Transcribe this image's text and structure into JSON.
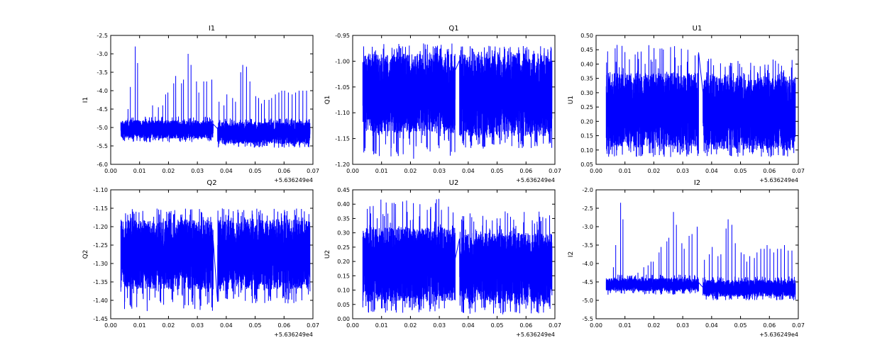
{
  "chart_data": [
    {
      "type": "line",
      "title": "I1",
      "ylabel": "I1",
      "xlabel": "",
      "x_offset_label": "+5.636249e4",
      "xlim": [
        0.0,
        0.07
      ],
      "xticks": [
        "0.00",
        "0.01",
        "0.02",
        "0.03",
        "0.04",
        "0.05",
        "0.06",
        "0.07"
      ],
      "ylim": [
        -6.0,
        -2.5
      ],
      "yticks": [
        "-6.0",
        "-5.5",
        "-5.0",
        "-4.5",
        "-4.0",
        "-3.5",
        "-3.0",
        "-2.5"
      ],
      "series_color": "#0000ff",
      "segments": [
        {
          "x": [
            0.0035,
            0.0355
          ],
          "band": [
            -5.3,
            -4.8
          ],
          "extremes": [
            -5.4,
            -4.7
          ]
        },
        {
          "x": [
            0.037,
            0.069
          ],
          "band": [
            -5.45,
            -4.85
          ],
          "extremes": [
            -5.55,
            -4.75
          ]
        }
      ],
      "spikes": [
        [
          0.006,
          -4.5
        ],
        [
          0.0068,
          -3.9
        ],
        [
          0.0085,
          -2.8
        ],
        [
          0.0093,
          -3.25
        ],
        [
          0.0145,
          -4.4
        ],
        [
          0.0165,
          -4.45
        ],
        [
          0.018,
          -4.4
        ],
        [
          0.019,
          -4.1
        ],
        [
          0.0198,
          -4.05
        ],
        [
          0.0218,
          -3.8
        ],
        [
          0.0225,
          -3.6
        ],
        [
          0.0245,
          -3.8
        ],
        [
          0.0252,
          -3.7
        ],
        [
          0.0268,
          -3.0
        ],
        [
          0.0278,
          -3.3
        ],
        [
          0.0297,
          -3.75
        ],
        [
          0.0305,
          -4.05
        ],
        [
          0.0322,
          -3.75
        ],
        [
          0.0332,
          -3.75
        ],
        [
          0.035,
          -3.7
        ],
        [
          0.0375,
          -4.3
        ],
        [
          0.0392,
          -4.4
        ],
        [
          0.0402,
          -4.1
        ],
        [
          0.0422,
          -4.2
        ],
        [
          0.0432,
          -4.3
        ],
        [
          0.045,
          -3.5
        ],
        [
          0.0457,
          -3.3
        ],
        [
          0.047,
          -3.35
        ],
        [
          0.0482,
          -3.75
        ],
        [
          0.0502,
          -4.15
        ],
        [
          0.0512,
          -4.2
        ],
        [
          0.0522,
          -4.35
        ],
        [
          0.0532,
          -4.25
        ],
        [
          0.0548,
          -4.25
        ],
        [
          0.0557,
          -4.2
        ],
        [
          0.057,
          -4.1
        ],
        [
          0.0582,
          -4.05
        ],
        [
          0.0592,
          -4.0
        ],
        [
          0.0602,
          -4.0
        ],
        [
          0.0615,
          -4.05
        ],
        [
          0.0628,
          -4.1
        ],
        [
          0.064,
          -4.05
        ],
        [
          0.0652,
          -4.0
        ],
        [
          0.0665,
          -4.0
        ],
        [
          0.0678,
          -4.0
        ]
      ]
    },
    {
      "type": "line",
      "title": "Q1",
      "ylabel": "Q1",
      "xlabel": "",
      "x_offset_label": "+5.636249e4",
      "xlim": [
        0.0,
        0.07
      ],
      "xticks": [
        "0.00",
        "0.01",
        "0.02",
        "0.03",
        "0.04",
        "0.05",
        "0.06",
        "0.07"
      ],
      "ylim": [
        -1.2,
        -0.95
      ],
      "yticks": [
        "-1.20",
        "-1.15",
        "-1.10",
        "-1.05",
        "-1.00",
        "-0.95"
      ],
      "series_color": "#0000ff",
      "segments": [
        {
          "x": [
            0.0035,
            0.0355
          ],
          "band": [
            -1.14,
            -0.985
          ],
          "extremes": [
            -1.19,
            -0.965
          ]
        },
        {
          "x": [
            0.037,
            0.069
          ],
          "band": [
            -1.145,
            -0.985
          ],
          "extremes": [
            -1.17,
            -0.97
          ]
        }
      ],
      "spikes": []
    },
    {
      "type": "line",
      "title": "U1",
      "ylabel": "U1",
      "xlabel": "",
      "x_offset_label": "+5.636249e4",
      "xlim": [
        0.0,
        0.07
      ],
      "xticks": [
        "0.00",
        "0.01",
        "0.02",
        "0.03",
        "0.04",
        "0.05",
        "0.06",
        "0.07"
      ],
      "ylim": [
        0.05,
        0.5
      ],
      "yticks": [
        "0.05",
        "0.10",
        "0.15",
        "0.20",
        "0.25",
        "0.30",
        "0.35",
        "0.40",
        "0.45",
        "0.50"
      ],
      "series_color": "#0000ff",
      "segments": [
        {
          "x": [
            0.0035,
            0.0355
          ],
          "band": [
            0.11,
            0.37
          ],
          "extremes": [
            0.075,
            0.47
          ]
        },
        {
          "x": [
            0.037,
            0.069
          ],
          "band": [
            0.1,
            0.36
          ],
          "extremes": [
            0.075,
            0.42
          ]
        }
      ],
      "spikes": []
    },
    {
      "type": "line",
      "title": "Q2",
      "ylabel": "Q2",
      "xlabel": "",
      "x_offset_label": "+5.636249e4",
      "xlim": [
        0.0,
        0.07
      ],
      "xticks": [
        "0.00",
        "0.01",
        "0.02",
        "0.03",
        "0.04",
        "0.05",
        "0.06",
        "0.07"
      ],
      "ylim": [
        -1.45,
        -1.1
      ],
      "yticks": [
        "-1.45",
        "-1.40",
        "-1.35",
        "-1.30",
        "-1.25",
        "-1.20",
        "-1.15",
        "-1.10"
      ],
      "series_color": "#0000ff",
      "segments": [
        {
          "x": [
            0.0035,
            0.0355
          ],
          "band": [
            -1.37,
            -1.18
          ],
          "extremes": [
            -1.43,
            -1.15
          ]
        },
        {
          "x": [
            0.037,
            0.069
          ],
          "band": [
            -1.37,
            -1.18
          ],
          "extremes": [
            -1.41,
            -1.15
          ]
        }
      ],
      "spikes": []
    },
    {
      "type": "line",
      "title": "U2",
      "ylabel": "U2",
      "xlabel": "",
      "x_offset_label": "+5.636249e4",
      "xlim": [
        0.0,
        0.07
      ],
      "xticks": [
        "0.00",
        "0.01",
        "0.02",
        "0.03",
        "0.04",
        "0.05",
        "0.06",
        "0.07"
      ],
      "ylim": [
        0.0,
        0.45
      ],
      "yticks": [
        "0.00",
        "0.05",
        "0.10",
        "0.15",
        "0.20",
        "0.25",
        "0.30",
        "0.35",
        "0.40",
        "0.45"
      ],
      "series_color": "#0000ff",
      "segments": [
        {
          "x": [
            0.0035,
            0.0355
          ],
          "band": [
            0.06,
            0.32
          ],
          "extremes": [
            0.02,
            0.42
          ]
        },
        {
          "x": [
            0.037,
            0.069
          ],
          "band": [
            0.05,
            0.3
          ],
          "extremes": [
            0.015,
            0.38
          ]
        }
      ],
      "spikes": []
    },
    {
      "type": "line",
      "title": "I2",
      "ylabel": "I2",
      "xlabel": "",
      "x_offset_label": "+5.636249e4",
      "xlim": [
        0.0,
        0.07
      ],
      "xticks": [
        "0.00",
        "0.01",
        "0.02",
        "0.03",
        "0.04",
        "0.05",
        "0.06",
        "0.07"
      ],
      "ylim": [
        -5.5,
        -2.0
      ],
      "yticks": [
        "-5.5",
        "-5.0",
        "-4.5",
        "-4.0",
        "-3.5",
        "-3.0",
        "-2.5",
        "-2.0"
      ],
      "series_color": "#0000ff",
      "segments": [
        {
          "x": [
            0.0035,
            0.0355
          ],
          "band": [
            -4.75,
            -4.4
          ],
          "extremes": [
            -4.85,
            -4.3
          ]
        },
        {
          "x": [
            0.037,
            0.069
          ],
          "band": [
            -4.9,
            -4.45
          ],
          "extremes": [
            -5.0,
            -4.35
          ]
        }
      ],
      "spikes": [
        [
          0.006,
          -4.1
        ],
        [
          0.0068,
          -3.5
        ],
        [
          0.0085,
          -2.35
        ],
        [
          0.0093,
          -2.8
        ],
        [
          0.0145,
          -4.25
        ],
        [
          0.0165,
          -4.1
        ],
        [
          0.018,
          -4.05
        ],
        [
          0.019,
          -3.95
        ],
        [
          0.0198,
          -3.95
        ],
        [
          0.0218,
          -3.7
        ],
        [
          0.0225,
          -3.55
        ],
        [
          0.0245,
          -3.4
        ],
        [
          0.0252,
          -3.3
        ],
        [
          0.0268,
          -2.6
        ],
        [
          0.0278,
          -2.95
        ],
        [
          0.0297,
          -3.45
        ],
        [
          0.0305,
          -3.6
        ],
        [
          0.0322,
          -3.25
        ],
        [
          0.0332,
          -3.2
        ],
        [
          0.035,
          -3.0
        ],
        [
          0.0375,
          -3.9
        ],
        [
          0.0392,
          -3.75
        ],
        [
          0.0402,
          -3.55
        ],
        [
          0.0422,
          -3.8
        ],
        [
          0.0432,
          -3.75
        ],
        [
          0.045,
          -3.05
        ],
        [
          0.0457,
          -2.8
        ],
        [
          0.047,
          -2.95
        ],
        [
          0.0482,
          -3.45
        ],
        [
          0.0502,
          -3.7
        ],
        [
          0.0512,
          -3.75
        ],
        [
          0.0522,
          -3.95
        ],
        [
          0.0532,
          -3.8
        ],
        [
          0.0548,
          -3.85
        ],
        [
          0.0557,
          -3.7
        ],
        [
          0.057,
          -3.6
        ],
        [
          0.0582,
          -3.6
        ],
        [
          0.0592,
          -3.5
        ],
        [
          0.0602,
          -3.6
        ],
        [
          0.0615,
          -3.7
        ],
        [
          0.0628,
          -3.6
        ],
        [
          0.064,
          -3.6
        ],
        [
          0.0652,
          -3.5
        ],
        [
          0.0665,
          -3.65
        ],
        [
          0.0678,
          -3.65
        ]
      ]
    }
  ]
}
